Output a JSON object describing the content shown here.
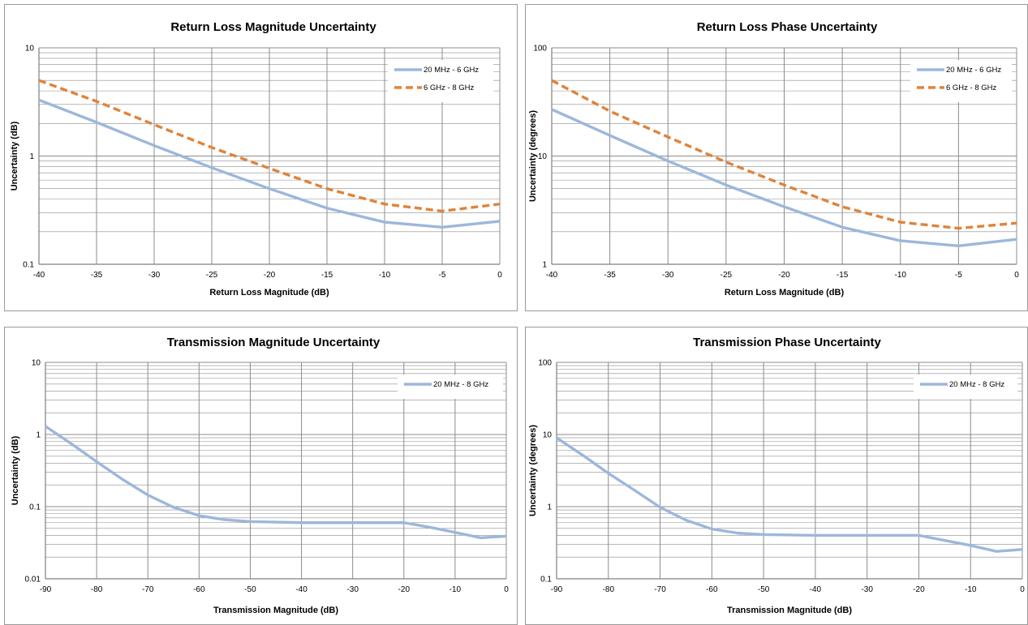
{
  "colors": {
    "series_blue": "#9db7db",
    "series_orange": "#e0833a",
    "grid": "#8c8c8c",
    "axis": "#7f7f7f"
  },
  "chart_data": [
    {
      "type": "line",
      "title": "Return Loss Magnitude Uncertainty",
      "xlabel": "Return Loss Magnitude (dB)",
      "ylabel": "Uncertainty (dB)",
      "xlim": [
        -40,
        0
      ],
      "ylim": [
        0.1,
        10
      ],
      "yscale": "log",
      "xticks": [
        "-40",
        "-35",
        "-30",
        "-25",
        "-20",
        "-15",
        "-10",
        "-5",
        "0"
      ],
      "yticks": [
        "0.1",
        "1",
        "10"
      ],
      "grid": true,
      "legend_position": "top-right",
      "series": [
        {
          "name": "20 MHz - 6 GHz",
          "style": "solid",
          "color": "#9db7db",
          "x": [
            -40,
            -35,
            -30,
            -25,
            -20,
            -15,
            -10,
            -5,
            0
          ],
          "y": [
            3.3,
            2.05,
            1.25,
            0.78,
            0.5,
            0.33,
            0.245,
            0.22,
            0.25
          ]
        },
        {
          "name": "6 GHz - 8 GHz",
          "style": "dashed",
          "color": "#e0833a",
          "x": [
            -40,
            -35,
            -30,
            -25,
            -20,
            -15,
            -10,
            -5,
            0
          ],
          "y": [
            5.0,
            3.2,
            1.95,
            1.2,
            0.77,
            0.5,
            0.36,
            0.31,
            0.36
          ]
        }
      ]
    },
    {
      "type": "line",
      "title": "Return Loss Phase Uncertainty",
      "xlabel": "Return Loss Magnitude (dB)",
      "ylabel": "Uncertainty (degrees)",
      "xlim": [
        -40,
        0
      ],
      "ylim": [
        1,
        100
      ],
      "yscale": "log",
      "xticks": [
        "-40",
        "-35",
        "-30",
        "-25",
        "-20",
        "-15",
        "-10",
        "-5",
        "0"
      ],
      "yticks": [
        "1",
        "10",
        "100"
      ],
      "grid": true,
      "legend_position": "top-right",
      "series": [
        {
          "name": "20 MHz - 6 GHz",
          "style": "solid",
          "color": "#9db7db",
          "x": [
            -40,
            -35,
            -30,
            -25,
            -20,
            -15,
            -10,
            -5,
            0
          ],
          "y": [
            27,
            15.5,
            9.0,
            5.4,
            3.4,
            2.2,
            1.65,
            1.48,
            1.7
          ]
        },
        {
          "name": "6 GHz - 8 GHz",
          "style": "dashed",
          "color": "#e0833a",
          "x": [
            -40,
            -35,
            -30,
            -25,
            -20,
            -15,
            -10,
            -5,
            0
          ],
          "y": [
            50,
            26,
            15,
            8.8,
            5.4,
            3.4,
            2.45,
            2.15,
            2.4
          ]
        }
      ]
    },
    {
      "type": "line",
      "title": "Transmission Magnitude Uncertainty",
      "xlabel": "Transmission Magnitude (dB)",
      "ylabel": "Uncertainty (dB)",
      "xlim": [
        -90,
        0
      ],
      "ylim": [
        0.01,
        10
      ],
      "yscale": "log",
      "xticks": [
        "-90",
        "-80",
        "-70",
        "-60",
        "-50",
        "-40",
        "-30",
        "-20",
        "-10",
        "0"
      ],
      "yticks": [
        "0.01",
        "0.1",
        "1",
        "10"
      ],
      "grid": true,
      "legend_position": "top-right",
      "series": [
        {
          "name": "20 MHz -  8 GHz",
          "style": "solid",
          "color": "#9db7db",
          "x": [
            -90,
            -85,
            -80,
            -75,
            -70,
            -65,
            -60,
            -55,
            -50,
            -45,
            -40,
            -35,
            -30,
            -25,
            -20,
            -15,
            -10,
            -5,
            0
          ],
          "y": [
            1.3,
            0.75,
            0.42,
            0.24,
            0.145,
            0.098,
            0.075,
            0.066,
            0.062,
            0.061,
            0.06,
            0.06,
            0.06,
            0.06,
            0.06,
            0.052,
            0.044,
            0.037,
            0.039
          ]
        }
      ]
    },
    {
      "type": "line",
      "title": "Transmission Phase Uncertainty",
      "xlabel": "Transmission Magnitude (dB)",
      "ylabel": "Uncertainty (degrees)",
      "xlim": [
        -90,
        0
      ],
      "ylim": [
        0.1,
        100
      ],
      "yscale": "log",
      "xticks": [
        "-90",
        "-80",
        "-70",
        "-60",
        "-50",
        "-40",
        "-30",
        "-20",
        "-10",
        "0"
      ],
      "yticks": [
        "0.1",
        "1",
        "10",
        "100"
      ],
      "grid": true,
      "legend_position": "top-right",
      "series": [
        {
          "name": "20 MHz -  8 GHz",
          "style": "solid",
          "color": "#9db7db",
          "x": [
            -90,
            -85,
            -80,
            -75,
            -70,
            -65,
            -60,
            -55,
            -50,
            -45,
            -40,
            -35,
            -30,
            -25,
            -20,
            -15,
            -10,
            -5,
            0
          ],
          "y": [
            9.0,
            5.2,
            2.9,
            1.7,
            0.98,
            0.65,
            0.49,
            0.43,
            0.41,
            0.405,
            0.4,
            0.4,
            0.4,
            0.4,
            0.4,
            0.34,
            0.29,
            0.24,
            0.255
          ]
        }
      ]
    }
  ]
}
